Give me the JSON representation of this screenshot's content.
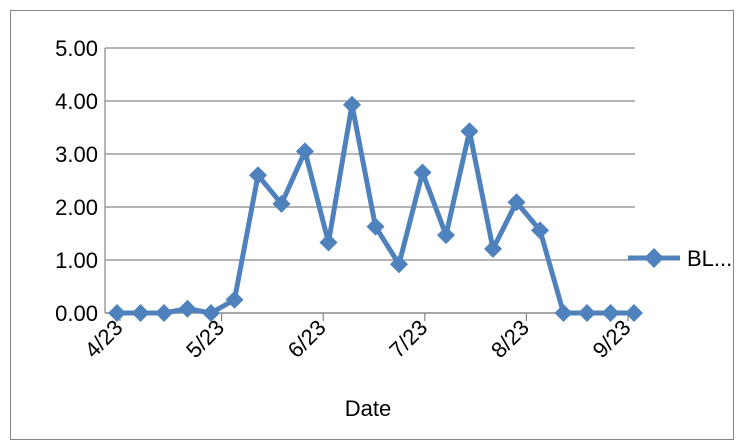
{
  "chart_data": {
    "type": "line",
    "xlabel": "Date",
    "ylabel": "",
    "ylim": [
      0,
      5
    ],
    "y_ticks": [
      "0.00",
      "1.00",
      "2.00",
      "3.00",
      "4.00",
      "5.00"
    ],
    "x_tick_labels": [
      "4/23",
      "5/23",
      "6/23",
      "7/23",
      "8/23",
      "9/23"
    ],
    "grid": "horizontal",
    "legend_position": "right",
    "series": [
      {
        "name": "BL...",
        "color": "#4F81BD",
        "marker": "diamond",
        "values": [
          0.0,
          0.0,
          0.0,
          0.08,
          0.0,
          0.25,
          2.6,
          2.06,
          3.05,
          1.33,
          3.93,
          1.63,
          0.92,
          2.65,
          1.47,
          3.43,
          1.21,
          2.09,
          1.56,
          0.0,
          0.0,
          0.0,
          0.0
        ]
      }
    ]
  }
}
